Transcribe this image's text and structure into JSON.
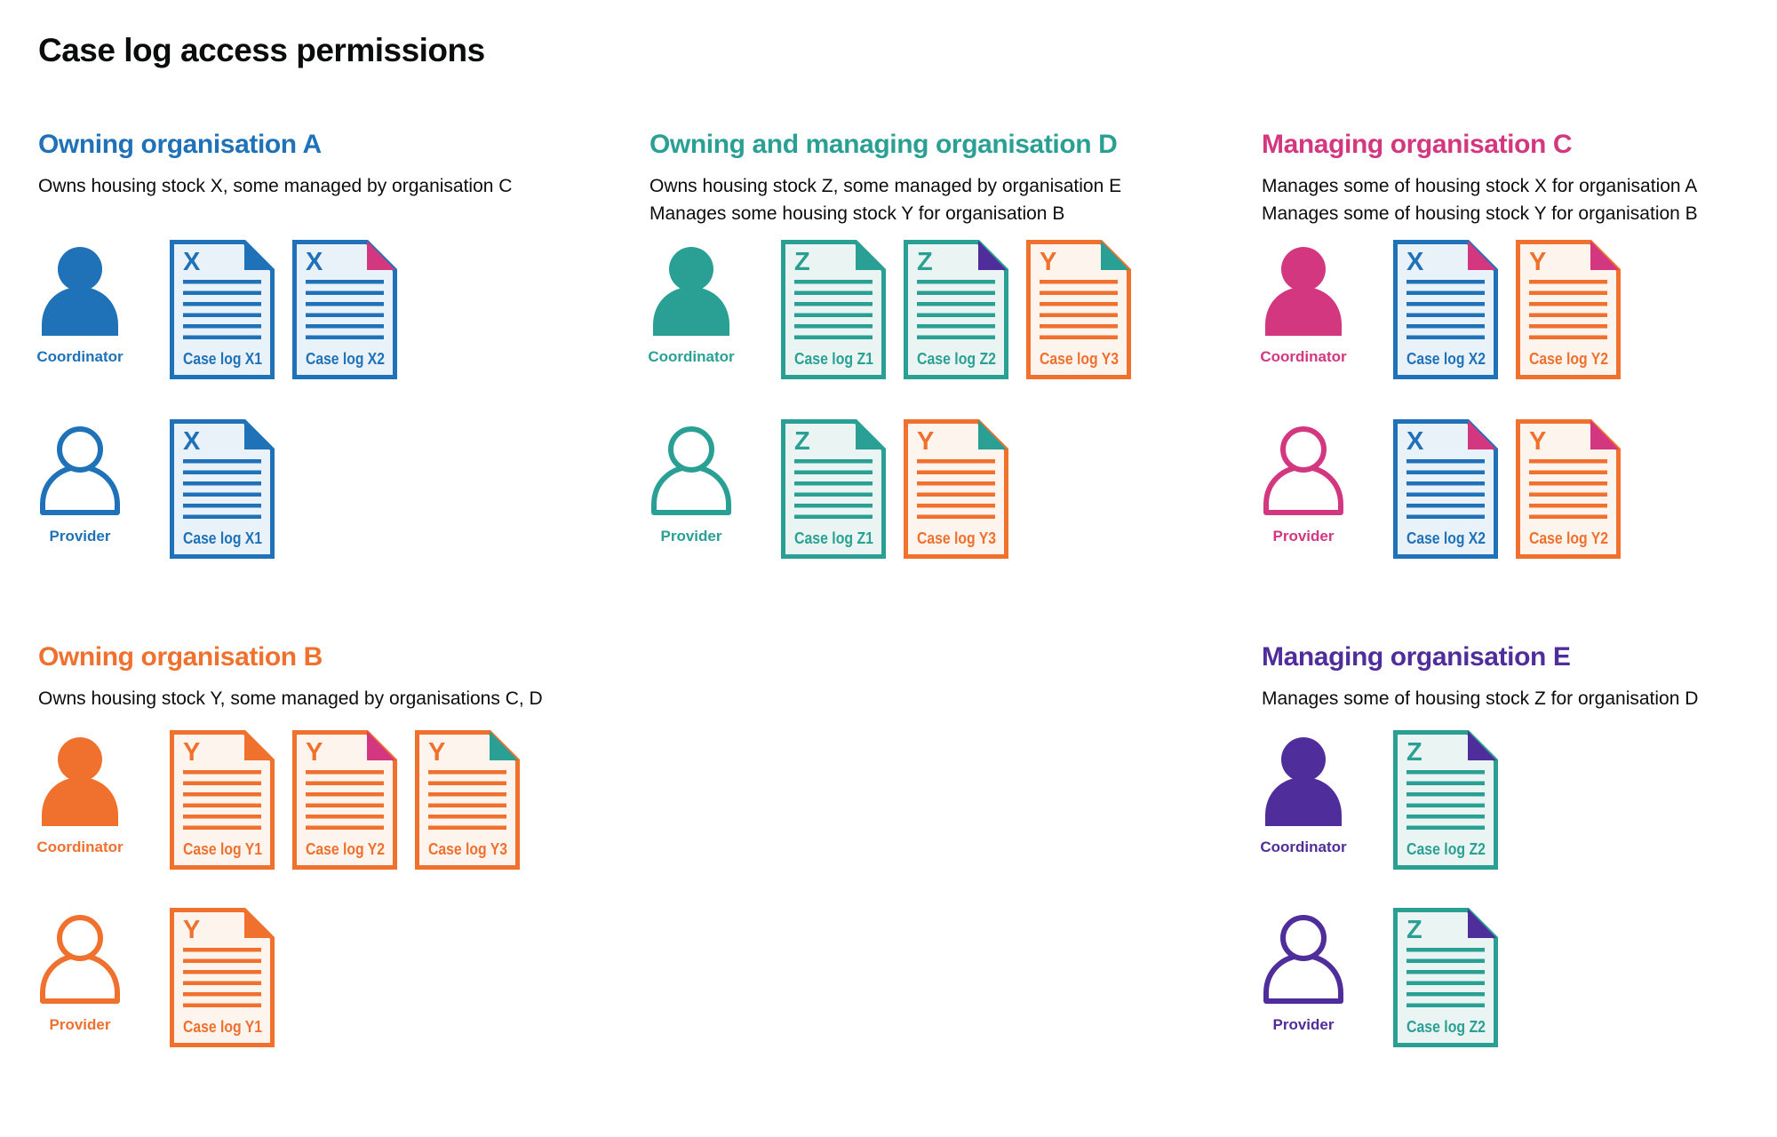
{
  "title": "Case log access permissions",
  "colors": {
    "blue": "#1f72b8",
    "teal": "#2aa094",
    "pink": "#d23780",
    "orange": "#f0702e",
    "purple": "#4f2d9a",
    "text": "#0b0c0c",
    "blue_light": "#e9f2f9",
    "teal_light": "#eaf5f3",
    "orange_light": "#fdf4ed"
  },
  "icons": {
    "coordinator": "person-filled-icon",
    "provider": "person-outline-icon",
    "case_log": "document-icon",
    "managed_marker": "folded-corner-icon"
  },
  "sections": [
    {
      "id": "org-a",
      "heading": "Owning organisation A",
      "color": "blue",
      "description": [
        "Owns housing stock X, some managed by organisation C"
      ],
      "rows": [
        {
          "role": "Coordinator",
          "person": "filled",
          "docs": [
            {
              "letter": "X",
              "label": "Case log X1",
              "color": "blue",
              "fold": "blue"
            },
            {
              "letter": "X",
              "label": "Case log X2",
              "color": "blue",
              "fold": "pink"
            }
          ]
        },
        {
          "role": "Provider",
          "person": "outline",
          "docs": [
            {
              "letter": "X",
              "label": "Case log X1",
              "color": "blue",
              "fold": "blue"
            }
          ]
        }
      ]
    },
    {
      "id": "org-d",
      "heading": "Owning and managing organisation D",
      "color": "teal",
      "description": [
        "Owns housing stock Z, some managed by organisation E",
        "Manages some housing stock Y for organisation B"
      ],
      "rows": [
        {
          "role": "Coordinator",
          "person": "filled",
          "docs": [
            {
              "letter": "Z",
              "label": "Case log Z1",
              "color": "teal",
              "fold": "teal"
            },
            {
              "letter": "Z",
              "label": "Case log Z2",
              "color": "teal",
              "fold": "purple"
            },
            {
              "letter": "Y",
              "label": "Case log Y3",
              "color": "orange",
              "fold": "teal"
            }
          ]
        },
        {
          "role": "Provider",
          "person": "outline",
          "docs": [
            {
              "letter": "Z",
              "label": "Case log Z1",
              "color": "teal",
              "fold": "teal"
            },
            {
              "letter": "Y",
              "label": "Case log Y3",
              "color": "orange",
              "fold": "teal"
            }
          ]
        }
      ]
    },
    {
      "id": "org-c",
      "heading": "Managing organisation C",
      "color": "pink",
      "description": [
        "Manages some of housing stock X for organisation A",
        "Manages some of housing stock Y for organisation B"
      ],
      "rows": [
        {
          "role": "Coordinator",
          "person": "filled",
          "docs": [
            {
              "letter": "X",
              "label": "Case log X2",
              "color": "blue",
              "fold": "pink"
            },
            {
              "letter": "Y",
              "label": "Case log Y2",
              "color": "orange",
              "fold": "pink"
            }
          ]
        },
        {
          "role": "Provider",
          "person": "outline",
          "docs": [
            {
              "letter": "X",
              "label": "Case log X2",
              "color": "blue",
              "fold": "pink"
            },
            {
              "letter": "Y",
              "label": "Case log Y2",
              "color": "orange",
              "fold": "pink"
            }
          ]
        }
      ]
    },
    {
      "id": "org-b",
      "heading": "Owning organisation B",
      "color": "orange",
      "description": [
        "Owns housing stock Y, some managed by organisations C, D"
      ],
      "rows": [
        {
          "role": "Coordinator",
          "person": "filled",
          "docs": [
            {
              "letter": "Y",
              "label": "Case log Y1",
              "color": "orange",
              "fold": "orange"
            },
            {
              "letter": "Y",
              "label": "Case log Y2",
              "color": "orange",
              "fold": "pink"
            },
            {
              "letter": "Y",
              "label": "Case log Y3",
              "color": "orange",
              "fold": "teal"
            }
          ]
        },
        {
          "role": "Provider",
          "person": "outline",
          "docs": [
            {
              "letter": "Y",
              "label": "Case log Y1",
              "color": "orange",
              "fold": "orange"
            }
          ]
        }
      ]
    },
    {
      "id": "org-e",
      "heading": "Managing organisation E",
      "color": "purple",
      "description": [
        "Manages some of housing stock Z for organisation D"
      ],
      "rows": [
        {
          "role": "Coordinator",
          "person": "filled",
          "docs": [
            {
              "letter": "Z",
              "label": "Case log Z2",
              "color": "teal",
              "fold": "purple"
            }
          ]
        },
        {
          "role": "Provider",
          "person": "outline",
          "docs": [
            {
              "letter": "Z",
              "label": "Case log Z2",
              "color": "teal",
              "fold": "purple"
            }
          ]
        }
      ]
    }
  ]
}
